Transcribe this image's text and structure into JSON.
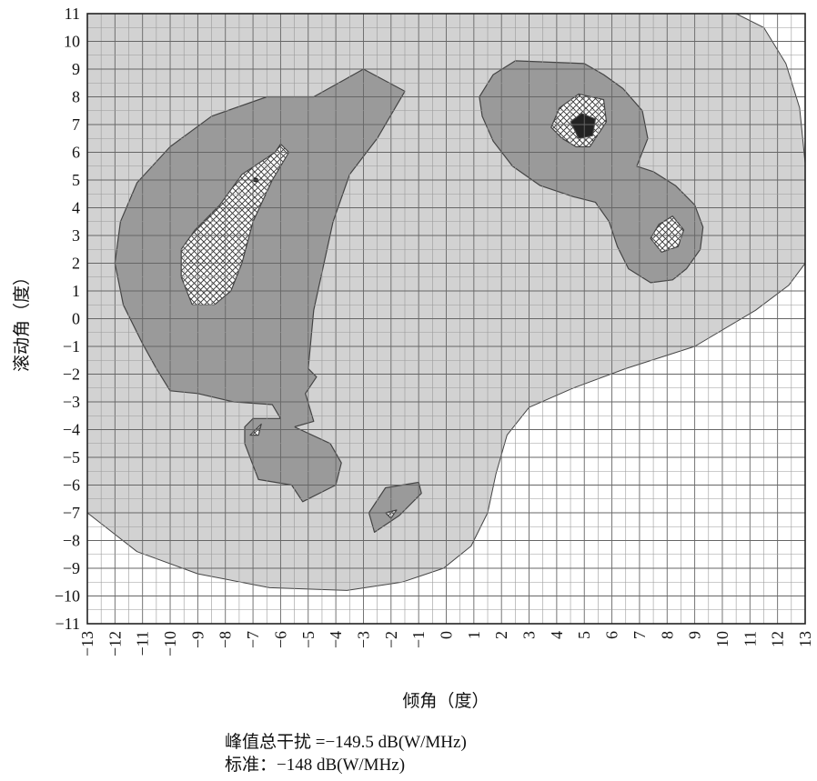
{
  "chart_data": {
    "type": "contour",
    "xlabel": "倾角（度）",
    "ylabel": "滚动角（度）",
    "xlim": [
      -13,
      13
    ],
    "ylim": [
      -11,
      11
    ],
    "x_ticks": [
      -13,
      -12,
      -11,
      -10,
      -9,
      -8,
      -7,
      -6,
      -5,
      -4,
      -3,
      -2,
      -1,
      0,
      1,
      2,
      3,
      4,
      5,
      6,
      7,
      8,
      9,
      10,
      11,
      12,
      13
    ],
    "y_ticks": [
      11,
      10,
      9,
      8,
      7,
      6,
      5,
      4,
      3,
      2,
      1,
      0,
      -1,
      -2,
      -3,
      -4,
      -5,
      -6,
      -7,
      -8,
      -9,
      -10,
      -11
    ],
    "grid": true,
    "levels": [
      {
        "fill": "#d2d2d2",
        "regions": [
          [
            [
              -13,
              11
            ],
            [
              10.5,
              11
            ],
            [
              11.5,
              10.5
            ],
            [
              12.3,
              9.2
            ],
            [
              12.8,
              7.6
            ],
            [
              13,
              5.6
            ],
            [
              13,
              2.0
            ],
            [
              12.4,
              1.2
            ],
            [
              11.2,
              0.3
            ],
            [
              9.0,
              -1.0
            ],
            [
              6.5,
              -1.8
            ],
            [
              4.6,
              -2.5
            ],
            [
              3.0,
              -3.2
            ],
            [
              2.2,
              -4.2
            ],
            [
              1.8,
              -5.6
            ],
            [
              1.5,
              -7.0
            ],
            [
              0.9,
              -8.2
            ],
            [
              -0.1,
              -9.0
            ],
            [
              -1.6,
              -9.5
            ],
            [
              -3.6,
              -9.8
            ],
            [
              -6.4,
              -9.7
            ],
            [
              -9.0,
              -9.2
            ],
            [
              -11.2,
              -8.4
            ],
            [
              -13,
              -7.0
            ]
          ]
        ]
      },
      {
        "fill": "#9a9a9a",
        "regions": [
          [
            [
              -12.0,
              2.0
            ],
            [
              -11.8,
              3.5
            ],
            [
              -11.2,
              4.9
            ],
            [
              -10.0,
              6.2
            ],
            [
              -8.5,
              7.3
            ],
            [
              -6.5,
              8.0
            ],
            [
              -4.8,
              8.0
            ],
            [
              -3.0,
              9.0
            ],
            [
              -1.5,
              8.2
            ],
            [
              -2.5,
              6.5
            ],
            [
              -3.5,
              5.2
            ],
            [
              -4.1,
              3.5
            ],
            [
              -4.8,
              0.3
            ],
            [
              -5.0,
              -1.8
            ],
            [
              -4.7,
              -2.1
            ],
            [
              -5.1,
              -2.7
            ],
            [
              -4.8,
              -3.7
            ],
            [
              -5.5,
              -3.9
            ],
            [
              -4.2,
              -4.5
            ],
            [
              -3.8,
              -5.2
            ],
            [
              -4.0,
              -6.0
            ],
            [
              -5.2,
              -6.6
            ],
            [
              -5.6,
              -6.0
            ],
            [
              -6.8,
              -5.8
            ],
            [
              -7.3,
              -4.5
            ],
            [
              -7.3,
              -3.9
            ],
            [
              -7.0,
              -3.6
            ],
            [
              -6.0,
              -3.6
            ],
            [
              -6.3,
              -3.1
            ],
            [
              -7.7,
              -3.0
            ],
            [
              -9.0,
              -2.7
            ],
            [
              -10.0,
              -2.6
            ],
            [
              -10.5,
              -1.8
            ],
            [
              -11.0,
              -0.9
            ],
            [
              -11.7,
              0.5
            ]
          ],
          [
            [
              -2.8,
              -7.0
            ],
            [
              -2.2,
              -6.1
            ],
            [
              -1.0,
              -5.9
            ],
            [
              -0.9,
              -6.3
            ],
            [
              -1.7,
              -7.1
            ],
            [
              -2.6,
              -7.7
            ]
          ],
          [
            [
              1.2,
              8.0
            ],
            [
              1.7,
              8.8
            ],
            [
              2.5,
              9.3
            ],
            [
              5.0,
              9.2
            ],
            [
              5.7,
              8.8
            ],
            [
              6.4,
              8.3
            ],
            [
              7.1,
              7.5
            ],
            [
              7.3,
              6.5
            ],
            [
              6.9,
              5.5
            ],
            [
              7.5,
              5.3
            ],
            [
              8.3,
              4.8
            ],
            [
              9.0,
              4.1
            ],
            [
              9.3,
              3.3
            ],
            [
              9.2,
              2.5
            ],
            [
              8.7,
              1.8
            ],
            [
              8.2,
              1.4
            ],
            [
              7.4,
              1.3
            ],
            [
              6.6,
              1.8
            ],
            [
              6.2,
              2.6
            ],
            [
              5.9,
              3.5
            ],
            [
              5.4,
              4.2
            ],
            [
              4.6,
              4.4
            ],
            [
              3.4,
              4.8
            ],
            [
              2.4,
              5.5
            ],
            [
              1.7,
              6.4
            ],
            [
              1.3,
              7.3
            ]
          ]
        ]
      },
      {
        "fill": "cross",
        "regions": [
          [
            [
              -9.6,
              1.5
            ],
            [
              -9.6,
              2.5
            ],
            [
              -9.1,
              3.2
            ],
            [
              -8.2,
              4.1
            ],
            [
              -7.4,
              5.2
            ],
            [
              -6.2,
              6.0
            ],
            [
              -6.0,
              6.3
            ],
            [
              -5.7,
              6.0
            ],
            [
              -6.3,
              5.0
            ],
            [
              -7.0,
              3.5
            ],
            [
              -7.4,
              2.0
            ],
            [
              -7.8,
              1.0
            ],
            [
              -8.4,
              0.5
            ],
            [
              -9.2,
              0.5
            ]
          ],
          [
            [
              -7.1,
              -4.2
            ],
            [
              -6.7,
              -3.8
            ],
            [
              -6.8,
              -4.2
            ]
          ],
          [
            [
              -2.0,
              -7.2
            ],
            [
              -1.8,
              -6.9
            ],
            [
              -2.2,
              -7.0
            ]
          ],
          [
            [
              3.8,
              6.9
            ],
            [
              4.1,
              7.6
            ],
            [
              4.8,
              8.1
            ],
            [
              5.7,
              7.9
            ],
            [
              5.8,
              7.1
            ],
            [
              5.2,
              6.2
            ],
            [
              4.7,
              6.2
            ],
            [
              4.2,
              6.5
            ]
          ],
          [
            [
              7.4,
              2.9
            ],
            [
              7.7,
              3.4
            ],
            [
              8.2,
              3.7
            ],
            [
              8.6,
              3.2
            ],
            [
              8.4,
              2.6
            ],
            [
              7.8,
              2.4
            ]
          ]
        ]
      },
      {
        "fill": "#222222",
        "regions": [
          [
            [
              4.5,
              7.1
            ],
            [
              4.9,
              7.4
            ],
            [
              5.4,
              7.2
            ],
            [
              5.3,
              6.6
            ],
            [
              4.8,
              6.5
            ]
          ]
        ]
      }
    ],
    "markers": [
      {
        "x": -6.9,
        "y": 5.0
      }
    ]
  },
  "caption": {
    "peak": "峰值总干扰 =−149.5 dB(W/MHz)",
    "standard": "标准：−148 dB(W/MHz)"
  }
}
